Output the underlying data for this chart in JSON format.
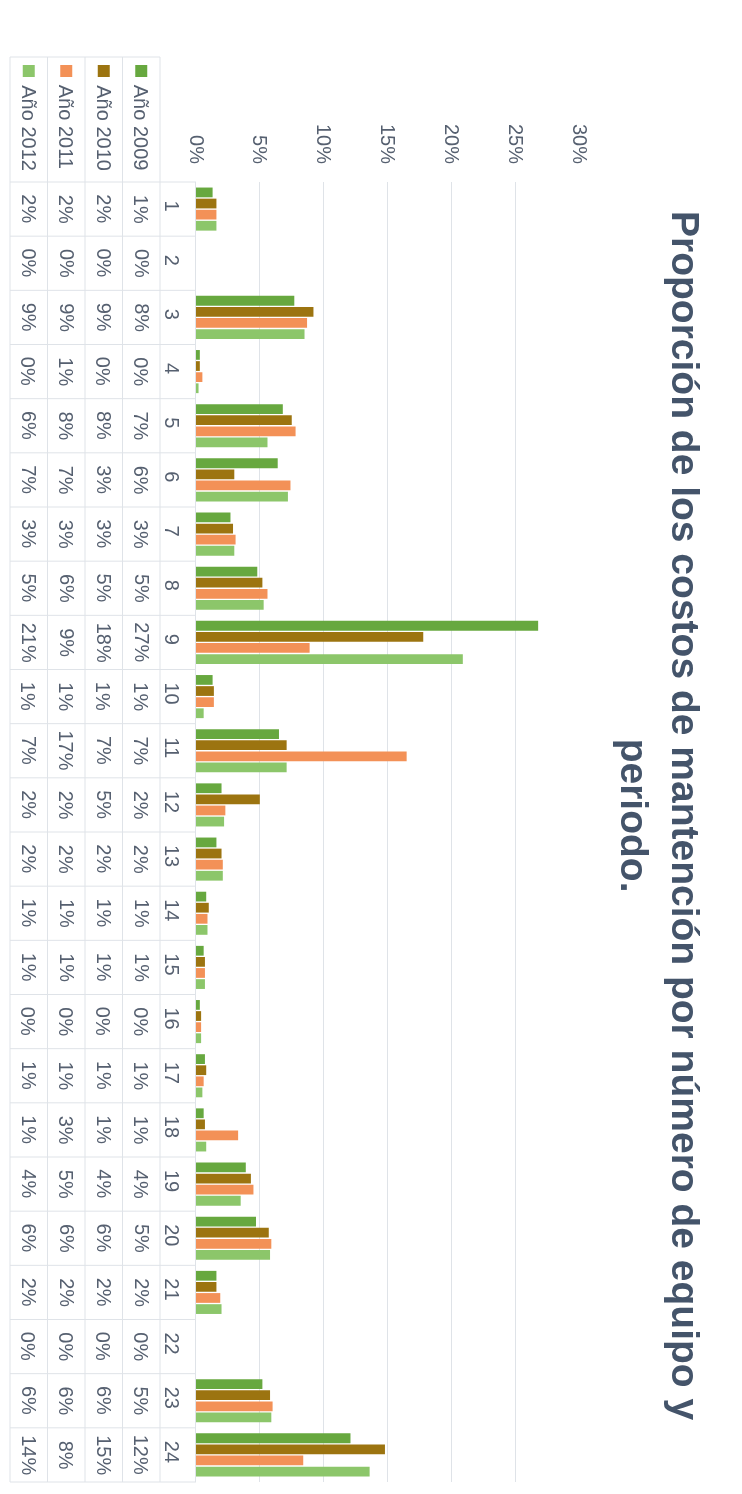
{
  "chart_data": {
    "type": "bar",
    "orientation": "horizontal",
    "title": "Proporción de los costos de mantención por número de equipo y periodo.",
    "categories": [
      "1",
      "2",
      "3",
      "4",
      "5",
      "6",
      "7",
      "8",
      "9",
      "10",
      "11",
      "12",
      "13",
      "14",
      "15",
      "16",
      "17",
      "18",
      "19",
      "20",
      "21",
      "22",
      "23",
      "24"
    ],
    "series": [
      {
        "name": "Año 2009",
        "color": "#67a83f",
        "values": [
          1.3,
          0,
          7.7,
          0.3,
          6.8,
          6.4,
          2.7,
          4.8,
          26.8,
          1.3,
          6.5,
          2.0,
          1.6,
          0.8,
          0.6,
          0.3,
          0.7,
          0.6,
          3.9,
          4.7,
          1.6,
          0,
          5.2,
          12.1
        ],
        "value_labels": [
          "1%",
          "0%",
          "8%",
          "0%",
          "7%",
          "6%",
          "3%",
          "5%",
          "27%",
          "1%",
          "7%",
          "2%",
          "2%",
          "1%",
          "1%",
          "0%",
          "1%",
          "1%",
          "4%",
          "5%",
          "2%",
          "0%",
          "5%",
          "12%"
        ]
      },
      {
        "name": "Año 2010",
        "color": "#9c7410",
        "values": [
          1.6,
          0,
          9.2,
          0.3,
          7.5,
          3.0,
          2.9,
          5.2,
          17.8,
          1.4,
          7.1,
          5.0,
          2.0,
          1.0,
          0.7,
          0.4,
          0.8,
          0.7,
          4.3,
          5.7,
          1.6,
          0,
          5.8,
          14.8
        ],
        "value_labels": [
          "2%",
          "0%",
          "9%",
          "0%",
          "8%",
          "3%",
          "3%",
          "5%",
          "18%",
          "1%",
          "7%",
          "5%",
          "2%",
          "1%",
          "1%",
          "0%",
          "1%",
          "1%",
          "4%",
          "6%",
          "2%",
          "0%",
          "6%",
          "15%"
        ]
      },
      {
        "name": "Año 2011",
        "color": "#f39157",
        "values": [
          1.6,
          0,
          8.7,
          0.5,
          7.8,
          7.4,
          3.1,
          5.6,
          8.9,
          1.4,
          16.5,
          2.3,
          2.1,
          0.9,
          0.7,
          0.4,
          0.6,
          3.3,
          4.5,
          5.9,
          1.9,
          0,
          6.0,
          8.4
        ],
        "value_labels": [
          "2%",
          "0%",
          "9%",
          "1%",
          "8%",
          "7%",
          "3%",
          "6%",
          "9%",
          "1%",
          "17%",
          "2%",
          "2%",
          "1%",
          "1%",
          "0%",
          "1%",
          "3%",
          "5%",
          "6%",
          "2%",
          "0%",
          "6%",
          "8%"
        ]
      },
      {
        "name": "Año 2012",
        "color": "#8cc66a",
        "values": [
          1.6,
          0,
          8.5,
          0.2,
          5.6,
          7.2,
          3.0,
          5.3,
          20.9,
          0.6,
          7.1,
          2.2,
          2.1,
          0.9,
          0.7,
          0.4,
          0.5,
          0.8,
          3.5,
          5.8,
          2.0,
          0,
          5.9,
          13.6
        ],
        "value_labels": [
          "2%",
          "0%",
          "9%",
          "0%",
          "6%",
          "7%",
          "3%",
          "5%",
          "21%",
          "1%",
          "7%",
          "2%",
          "2%",
          "1%",
          "1%",
          "0%",
          "1%",
          "1%",
          "4%",
          "6%",
          "2%",
          "0%",
          "6%",
          "14%"
        ]
      }
    ],
    "xlim": [
      0,
      30
    ],
    "xticks": [
      {
        "value": 0,
        "label": "0%"
      },
      {
        "value": 5,
        "label": "5%"
      },
      {
        "value": 10,
        "label": "10%"
      },
      {
        "value": 15,
        "label": "15%"
      },
      {
        "value": 20,
        "label": "20%"
      },
      {
        "value": 25,
        "label": "25%"
      },
      {
        "value": 30,
        "label": "30%"
      }
    ],
    "grid": "x",
    "legend": "top left"
  }
}
